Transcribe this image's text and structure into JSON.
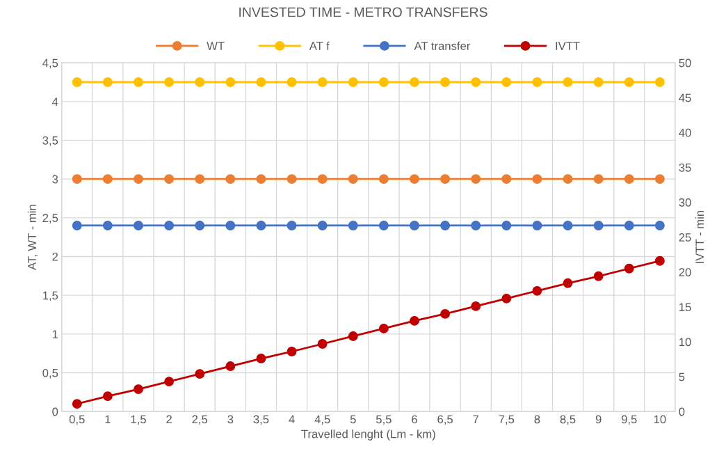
{
  "chart_data": {
    "type": "line",
    "title": "INVESTED TIME - METRO TRANSFERS",
    "xlabel": "Travelled lenght (Lm - km)",
    "ylabel": "AT, WT - min",
    "y2label": "IVTT - min",
    "categories": [
      "0,5",
      "1",
      "1,5",
      "2",
      "2,5",
      "3",
      "3,5",
      "4",
      "4,5",
      "5",
      "5,5",
      "6",
      "6,5",
      "7",
      "7,5",
      "8",
      "8,5",
      "9",
      "9,5",
      "10"
    ],
    "series": [
      {
        "name": "WT",
        "color": "#ed7d31",
        "values": [
          3,
          3,
          3,
          3,
          3,
          3,
          3,
          3,
          3,
          3,
          3,
          3,
          3,
          3,
          3,
          3,
          3,
          3,
          3,
          3
        ]
      },
      {
        "name": "AT f",
        "color": "#ffc000",
        "values": [
          4.25,
          4.25,
          4.25,
          4.25,
          4.25,
          4.25,
          4.25,
          4.25,
          4.25,
          4.25,
          4.25,
          4.25,
          4.25,
          4.25,
          4.25,
          4.25,
          4.25,
          4.25,
          4.25,
          4.25
        ]
      },
      {
        "name": "AT transfer",
        "color": "#4472c4",
        "values": [
          2.4,
          2.4,
          2.4,
          2.4,
          2.4,
          2.4,
          2.4,
          2.4,
          2.4,
          2.4,
          2.4,
          2.4,
          2.4,
          2.4,
          2.4,
          2.4,
          2.4,
          2.4,
          2.4,
          2.4
        ]
      },
      {
        "name": "IVTT",
        "color": "#c00000",
        "axis": "y2",
        "values": [
          1.1,
          2.2,
          3.2,
          4.3,
          5.4,
          6.5,
          7.6,
          8.6,
          9.7,
          10.8,
          11.9,
          13.0,
          14.0,
          15.1,
          16.2,
          17.3,
          18.4,
          19.4,
          20.5,
          21.6
        ]
      }
    ],
    "ylim": [
      0,
      4.5
    ],
    "yticks": [
      0,
      {
        "value": 0.5,
        "label": "0,5"
      },
      1,
      {
        "value": 1.5,
        "label": "1,5"
      },
      2,
      {
        "value": 2.5,
        "label": "2,5"
      },
      3,
      {
        "value": 3.5,
        "label": "3,5"
      },
      4,
      {
        "value": 4.5,
        "label": "4,5"
      }
    ],
    "y2lim": [
      0,
      50
    ],
    "y2ticks": [
      0,
      5,
      10,
      15,
      20,
      25,
      30,
      35,
      40,
      45,
      50
    ],
    "grid": true,
    "legend": "top",
    "marker": "circle",
    "line_style": "solid"
  }
}
